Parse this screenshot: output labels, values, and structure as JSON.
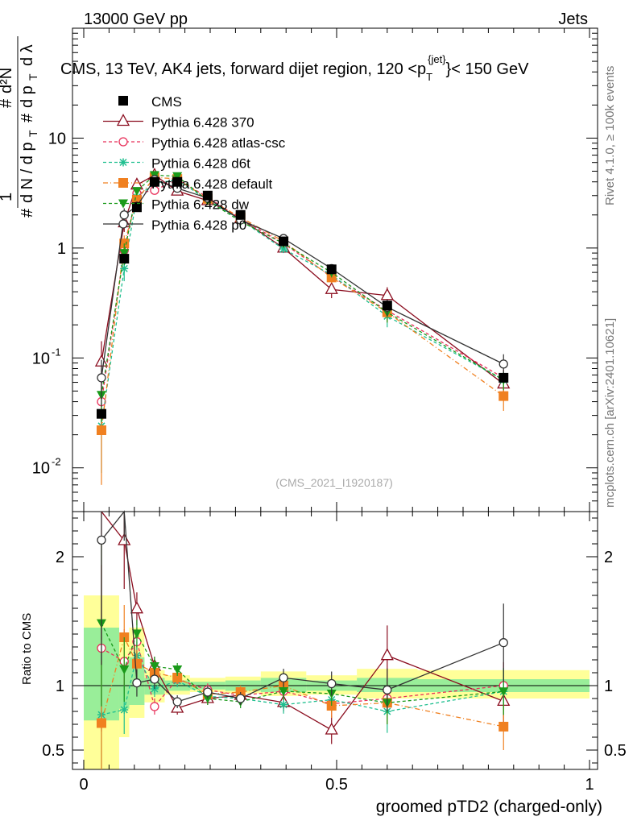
{
  "header": {
    "left": "13000 GeV pp",
    "right": "Jets",
    "title": "CMS, 13 TeV, AK4 jets, forward dijet region, 120 <p",
    "title_sup": "{jet}",
    "title_sub": "T",
    "title_tail": "}< 150 GeV",
    "watermark": "(CMS_2021_I1920187)",
    "side_rivet": "Rivet 4.1.0, ≥ 100k events",
    "side_mcplots": "mcplots.cern.ch [arXiv:2401.10621]"
  },
  "colors": {
    "CMS": "#000000",
    "p370": "#8b0d1f",
    "atlas": "#e8305a",
    "d6t": "#1fbf8f",
    "default": "#f08020",
    "dw": "#1a9a1a",
    "p0": "#333333",
    "band_yellow": "#ffff99",
    "band_green": "#99ee99"
  },
  "chart_data": {
    "type": "line",
    "title": "CMS, 13 TeV, AK4 jets, forward dijet region, 120 < pT(jet) < 150 GeV",
    "xlabel": "groomed pTD2 (charged-only)",
    "ylabel_main": "1/dN/dpT · d2N/dpT dλ",
    "ylabel_ratio": "Ratio to CMS",
    "xlim": [
      0,
      1
    ],
    "ylim_main_log": [
      0.004,
      100
    ],
    "ylim_ratio": [
      0.35,
      2.35
    ],
    "x_ticks": [
      "0",
      "0.5",
      "1"
    ],
    "y_ticks_main": [
      "10^-2",
      "10^-1",
      "1",
      "10"
    ],
    "y_ticks_ratio": [
      "0.5",
      "1",
      "2"
    ],
    "x": [
      0.035,
      0.08,
      0.105,
      0.14,
      0.185,
      0.245,
      0.31,
      0.395,
      0.49,
      0.6,
      0.83
    ],
    "bin_edges": [
      0.0,
      0.07,
      0.09,
      0.12,
      0.16,
      0.21,
      0.28,
      0.35,
      0.44,
      0.54,
      0.66,
      1.0
    ],
    "cms": {
      "name": "CMS",
      "values": [
        0.031,
        0.8,
        2.35,
        4.0,
        4.0,
        3.0,
        2.0,
        1.15,
        0.64,
        0.3,
        0.066
      ]
    },
    "uncertainty_bands": {
      "yellow": [
        [
          0.05,
          1.7
        ],
        [
          0.6,
          1.35
        ],
        [
          0.75,
          1.45
        ],
        [
          0.87,
          1.12
        ],
        [
          0.93,
          1.08
        ],
        [
          0.95,
          1.06
        ],
        [
          0.94,
          1.07
        ],
        [
          0.92,
          1.11
        ],
        [
          0.93,
          1.08
        ],
        [
          0.9,
          1.13
        ],
        [
          0.9,
          1.12
        ]
      ],
      "green": [
        [
          0.73,
          1.45
        ],
        [
          0.82,
          1.2
        ],
        [
          0.85,
          1.22
        ],
        [
          0.93,
          1.06
        ],
        [
          0.96,
          1.04
        ],
        [
          0.97,
          1.03
        ],
        [
          0.96,
          1.04
        ],
        [
          0.95,
          1.06
        ],
        [
          0.96,
          1.04
        ],
        [
          0.95,
          1.06
        ],
        [
          0.95,
          1.05
        ]
      ]
    },
    "series": [
      {
        "name": "Pythia 6.428 370",
        "key": "p370",
        "marker": "triangle-open",
        "dash": "",
        "values": [
          0.092,
          1.7,
          3.75,
          4.6,
          3.3,
          2.7,
          1.85,
          1.0,
          0.42,
          0.37,
          0.058
        ],
        "errors": [
          0.05,
          0.3,
          0.3,
          0.3,
          0.2,
          0.15,
          0.1,
          0.08,
          0.07,
          0.07,
          0.012
        ]
      },
      {
        "name": "Pythia 6.428 atlas-csc",
        "key": "atlas",
        "marker": "circle-open",
        "dash": "4,3",
        "values": [
          0.04,
          0.95,
          3.15,
          3.35,
          4.2,
          2.9,
          1.85,
          1.1,
          0.55,
          0.27,
          0.066
        ],
        "errors": [
          0.02,
          0.2,
          0.25,
          0.25,
          0.2,
          0.15,
          0.1,
          0.08,
          0.06,
          0.05,
          0.012
        ]
      },
      {
        "name": "Pythia 6.428 d6t",
        "key": "d6t",
        "marker": "star",
        "dash": "4,3",
        "values": [
          0.024,
          0.65,
          2.9,
          3.9,
          4.15,
          2.75,
          1.8,
          0.98,
          0.57,
          0.24,
          0.063
        ],
        "errors": [
          0.015,
          0.15,
          0.25,
          0.25,
          0.2,
          0.15,
          0.1,
          0.08,
          0.06,
          0.05,
          0.012
        ]
      },
      {
        "name": "Pythia 6.428 default",
        "key": "default",
        "marker": "square",
        "dash": "6,3,1,3",
        "values": [
          0.022,
          1.1,
          2.75,
          4.4,
          4.25,
          2.8,
          1.9,
          1.15,
          0.54,
          0.26,
          0.045
        ],
        "errors": [
          0.015,
          0.2,
          0.25,
          0.3,
          0.2,
          0.15,
          0.1,
          0.08,
          0.06,
          0.05,
          0.012
        ]
      },
      {
        "name": "Pythia 6.428 dw",
        "key": "dw",
        "marker": "triangle-down",
        "dash": "4,3",
        "values": [
          0.046,
          0.9,
          3.3,
          4.6,
          4.5,
          2.7,
          1.75,
          1.1,
          0.6,
          0.26,
          0.063
        ],
        "errors": [
          0.02,
          0.2,
          0.25,
          0.3,
          0.2,
          0.15,
          0.1,
          0.08,
          0.06,
          0.05,
          0.012
        ]
      },
      {
        "name": "Pythia 6.428 p0",
        "key": "p0",
        "marker": "circle-open",
        "dash": "",
        "values": [
          0.066,
          2.0,
          2.4,
          4.2,
          3.5,
          2.85,
          1.8,
          1.22,
          0.65,
          0.29,
          0.088
        ],
        "errors": [
          0.03,
          0.3,
          0.25,
          0.3,
          0.2,
          0.15,
          0.1,
          0.08,
          0.06,
          0.05,
          0.02
        ]
      }
    ]
  }
}
